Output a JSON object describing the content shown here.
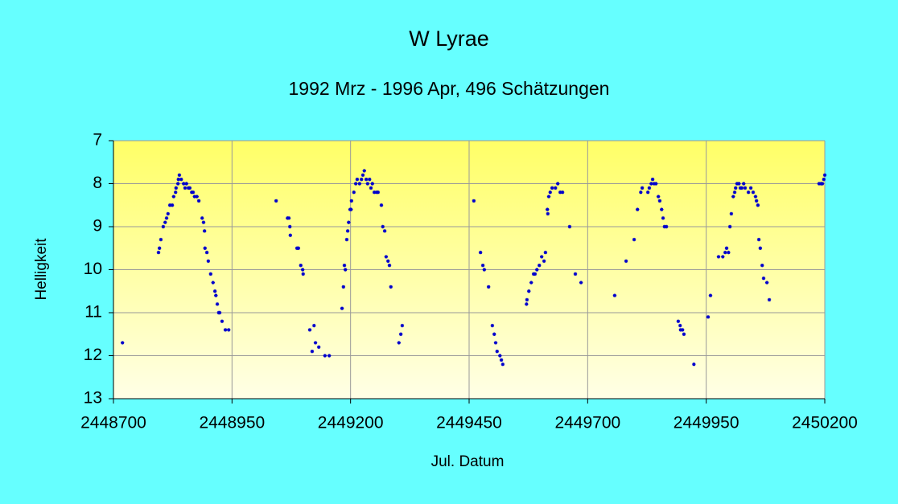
{
  "chart_data": {
    "type": "scatter",
    "title": "W Lyrae",
    "subtitle": "1992 Mrz - 1996 Apr, 496 Schätzungen",
    "xlabel": "Jul. Datum",
    "ylabel": "Helligkeit",
    "color": "#0000cc",
    "grid": true,
    "xlim": [
      2448700,
      2450200
    ],
    "xticks": [
      2448700,
      2448950,
      2449200,
      2449450,
      2449700,
      2449950,
      2450200
    ],
    "ylim": [
      13,
      7
    ],
    "yticks": [
      7,
      8,
      9,
      10,
      11,
      12,
      13
    ],
    "x": [
      2448719,
      2448795,
      2448797,
      2448800,
      2448805,
      2448809,
      2448812,
      2448815,
      2448819,
      2448824,
      2448827,
      2448831,
      2448832,
      2448836,
      2448837,
      2448839,
      2448843,
      2448848,
      2448851,
      2448854,
      2448858,
      2448861,
      2448865,
      2448868,
      2448871,
      2448876,
      2448880,
      2448887,
      2448890,
      2448892,
      2448893,
      2448897,
      2448900,
      2448905,
      2448910,
      2448914,
      2448916,
      2448919,
      2448922,
      2448924,
      2448929,
      2448936,
      2448943,
      2449043,
      2449067,
      2449070,
      2449072,
      2449073,
      2449087,
      2449090,
      2449095,
      2449099,
      2449100,
      2449114,
      2449119,
      2449123,
      2449126,
      2449133,
      2449146,
      2449155,
      2449182,
      2449185,
      2449187,
      2449189,
      2449192,
      2449194,
      2449196,
      2449199,
      2449201,
      2449202,
      2449207,
      2449211,
      2449214,
      2449219,
      2449223,
      2449226,
      2449229,
      2449233,
      2449236,
      2449240,
      2449243,
      2449246,
      2449250,
      2449255,
      2449258,
      2449265,
      2449268,
      2449272,
      2449275,
      2449279,
      2449282,
      2449285,
      2449302,
      2449306,
      2449309,
      2449460,
      2449474,
      2449479,
      2449482,
      2449491,
      2449499,
      2449503,
      2449506,
      2449509,
      2449515,
      2449518,
      2449521,
      2449571,
      2449572,
      2449576,
      2449581,
      2449586,
      2449589,
      2449593,
      2449598,
      2449603,
      2449608,
      2449611,
      2449615,
      2449616,
      2449618,
      2449621,
      2449625,
      2449632,
      2449637,
      2449642,
      2449647,
      2449662,
      2449674,
      2449686,
      2449757,
      2449781,
      2449798,
      2449805,
      2449812,
      2449815,
      2449827,
      2449830,
      2449834,
      2449837,
      2449840,
      2449844,
      2449849,
      2449852,
      2449856,
      2449859,
      2449862,
      2449866,
      2449891,
      2449895,
      2449896,
      2449900,
      2449903,
      2449924,
      2449954,
      2449959,
      2449976,
      2449985,
      2449990,
      2449993,
      2449997,
      2450000,
      2450003,
      2450007,
      2450010,
      2450012,
      2450015,
      2450019,
      2450022,
      2450025,
      2450029,
      2450032,
      2450039,
      2450044,
      2450049,
      2450054,
      2450056,
      2450059,
      2450061,
      2450064,
      2450068,
      2450071,
      2450078,
      2450083,
      2450188,
      2450192,
      2450195,
      2450198,
      2450200
    ],
    "values": [
      11.7,
      9.6,
      9.5,
      9.3,
      9.0,
      8.9,
      8.8,
      8.7,
      8.5,
      8.5,
      8.3,
      8.2,
      8.1,
      8.0,
      7.9,
      7.8,
      7.9,
      8.0,
      8.1,
      8.0,
      8.1,
      8.1,
      8.2,
      8.2,
      8.3,
      8.3,
      8.4,
      8.8,
      8.9,
      9.1,
      9.5,
      9.6,
      9.8,
      10.1,
      10.3,
      10.5,
      10.6,
      10.8,
      11.0,
      11.0,
      11.2,
      11.4,
      11.4,
      8.4,
      8.8,
      8.8,
      9.0,
      9.2,
      9.5,
      9.5,
      9.9,
      10.0,
      10.1,
      11.4,
      11.9,
      11.3,
      11.7,
      11.8,
      12.0,
      12.0,
      10.9,
      10.4,
      9.9,
      10.0,
      9.3,
      9.1,
      8.9,
      8.6,
      8.6,
      8.4,
      8.2,
      8.0,
      7.9,
      8.0,
      7.9,
      7.8,
      7.7,
      7.9,
      8.0,
      7.9,
      8.1,
      8.0,
      8.2,
      8.2,
      8.2,
      8.5,
      9.0,
      9.1,
      9.7,
      9.8,
      9.9,
      10.4,
      11.7,
      11.5,
      11.3,
      8.4,
      9.6,
      9.9,
      10.0,
      10.4,
      11.3,
      11.5,
      11.7,
      11.9,
      12.0,
      12.1,
      12.2,
      10.8,
      10.7,
      10.5,
      10.3,
      10.1,
      10.1,
      10.0,
      9.9,
      9.7,
      9.8,
      9.6,
      8.6,
      8.7,
      8.3,
      8.2,
      8.1,
      8.1,
      8.0,
      8.2,
      8.2,
      9.0,
      10.1,
      10.3,
      10.6,
      9.8,
      9.3,
      8.6,
      8.2,
      8.1,
      8.2,
      8.1,
      8.0,
      7.9,
      8.0,
      8.0,
      8.3,
      8.4,
      8.6,
      8.8,
      9.0,
      9.0,
      11.2,
      11.3,
      11.4,
      11.4,
      11.5,
      12.2,
      11.1,
      10.6,
      9.7,
      9.7,
      9.6,
      9.5,
      9.6,
      9.0,
      8.7,
      8.3,
      8.2,
      8.1,
      8.0,
      8.0,
      8.1,
      8.1,
      8.0,
      8.1,
      8.2,
      8.1,
      8.2,
      8.3,
      8.4,
      8.5,
      9.3,
      9.5,
      9.9,
      10.2,
      10.3,
      10.7,
      8.0,
      8.0,
      8.0,
      7.9,
      7.8
    ]
  }
}
